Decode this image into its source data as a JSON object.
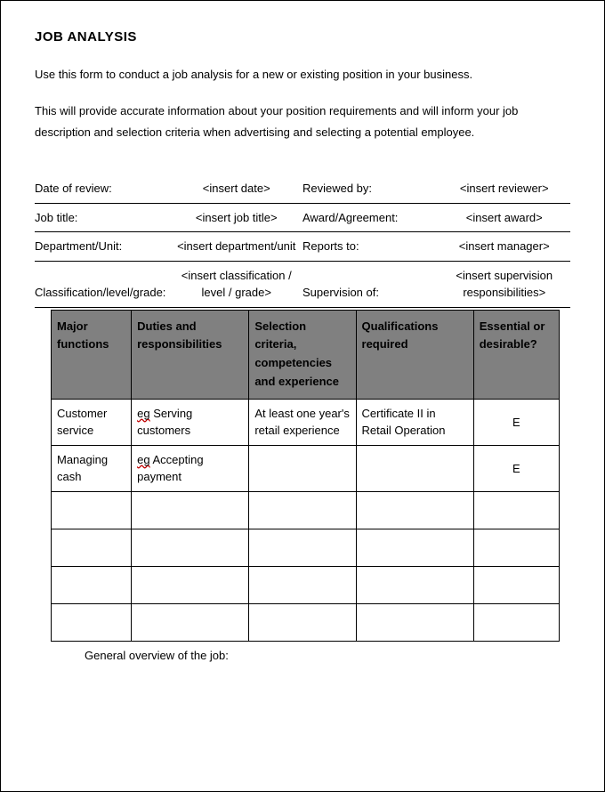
{
  "title": "JOB ANALYSIS",
  "intro": {
    "p1": "Use this form to conduct a job analysis  for a new or existing position in your business.",
    "p2": "This will provide accurate information about your position requirements and will inform your job description and selection criteria when advertising and selecting a potential employee."
  },
  "info": {
    "date_label": "Date of review:",
    "date_value": "<insert date>",
    "reviewed_label": "Reviewed by:",
    "reviewed_value": "<insert reviewer>",
    "jobtitle_label": "Job title:",
    "jobtitle_value": "<insert job title>",
    "award_label": "Award/Agreement:",
    "award_value": "<insert award>",
    "dept_label": "Department/Unit:",
    "dept_value": "<insert department/unit",
    "reports_label": "Reports to:",
    "reports_value": "<insert manager>",
    "class_label": "Classification/level/grade:",
    "class_value": "<insert classification / level / grade>",
    "super_label": "Supervision of:",
    "super_value": "<insert supervision responsibilities>"
  },
  "functions": {
    "headers": {
      "c1": "Major functions",
      "c2": "Duties and responsibilities",
      "c3": "Selection criteria, competencies and experience",
      "c4": "Qualifications required",
      "c5": "Essential or desirable?"
    },
    "rows": [
      {
        "c1": "Customer service",
        "c2_pre": "",
        "c2_sq": "eg",
        "c2_post": " Serving customers",
        "c3": "At least one year's retail experience",
        "c4": "Certificate II in Retail Operation",
        "c5": "E"
      },
      {
        "c1": "Managing cash",
        "c2_pre": "",
        "c2_sq": "eg",
        "c2_post": " Accepting payment",
        "c3": "",
        "c4": "",
        "c5": "E"
      },
      {
        "c1": "",
        "c2_pre": "",
        "c2_sq": "",
        "c2_post": "",
        "c3": "",
        "c4": "",
        "c5": ""
      },
      {
        "c1": "",
        "c2_pre": "",
        "c2_sq": "",
        "c2_post": "",
        "c3": "",
        "c4": "",
        "c5": ""
      },
      {
        "c1": "",
        "c2_pre": "",
        "c2_sq": "",
        "c2_post": "",
        "c3": "",
        "c4": "",
        "c5": ""
      },
      {
        "c1": "",
        "c2_pre": "",
        "c2_sq": "",
        "c2_post": "",
        "c3": "",
        "c4": "",
        "c5": ""
      }
    ]
  },
  "overview_label": "General overview of the job:",
  "colors": {
    "header_bg": "#808080",
    "border": "#000000",
    "text": "#000000",
    "squiggle": "#c00000"
  }
}
